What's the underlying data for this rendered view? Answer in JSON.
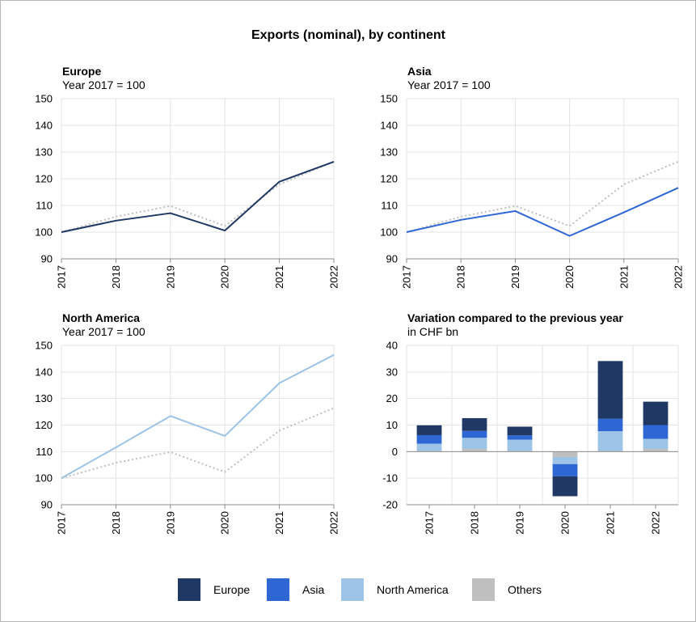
{
  "figure": {
    "title": "Exports (nominal), by continent",
    "legend": {
      "placement": "bottom",
      "items": [
        {
          "label": "Europe",
          "color": "#1f3864"
        },
        {
          "label": "Asia",
          "color": "#2e66d4"
        },
        {
          "label": "North America",
          "color": "#9dc3e6"
        },
        {
          "label": "Others",
          "color": "#bfbfbf"
        }
      ]
    }
  },
  "chart_data": [
    {
      "type": "line",
      "title": "Europe",
      "subtitle": "Year 2017 = 100",
      "x": [
        "2017",
        "2018",
        "2019",
        "2020",
        "2021",
        "2022"
      ],
      "ylim": [
        90,
        150
      ],
      "yticks": [
        90,
        100,
        110,
        120,
        130,
        140,
        150
      ],
      "grid": true,
      "series": [
        {
          "name": "Europe",
          "color": "#1f3864",
          "style": "solid",
          "values": [
            100,
            104.3,
            107.1,
            100.6,
            118.9,
            126.4
          ]
        }
      ],
      "reference": {
        "color": "#bfbfbf",
        "style": "dotted",
        "values": [
          100,
          105.8,
          109.8,
          102.3,
          117.9,
          126.4
        ]
      }
    },
    {
      "type": "line",
      "title": "Asia",
      "subtitle": "Year 2017 = 100",
      "x": [
        "2017",
        "2018",
        "2019",
        "2020",
        "2021",
        "2022"
      ],
      "ylim": [
        90,
        150
      ],
      "yticks": [
        90,
        100,
        110,
        120,
        130,
        140,
        150
      ],
      "grid": true,
      "series": [
        {
          "name": "Asia",
          "color": "#2e66d4",
          "style": "solid",
          "values": [
            100,
            104.6,
            107.9,
            98.6,
            107.4,
            116.6
          ]
        }
      ],
      "reference": {
        "color": "#bfbfbf",
        "style": "dotted",
        "values": [
          100,
          105.8,
          109.8,
          102.3,
          117.9,
          126.4
        ]
      }
    },
    {
      "type": "line",
      "title": "North America",
      "subtitle": "Year 2017 = 100",
      "x": [
        "2017",
        "2018",
        "2019",
        "2020",
        "2021",
        "2022"
      ],
      "ylim": [
        90,
        150
      ],
      "yticks": [
        90,
        100,
        110,
        120,
        130,
        140,
        150
      ],
      "grid": true,
      "series": [
        {
          "name": "North America",
          "color": "#9dc3e6",
          "style": "solid",
          "values": [
            100,
            111.6,
            123.4,
            115.9,
            135.8,
            146.4
          ]
        }
      ],
      "reference": {
        "color": "#bfbfbf",
        "style": "dotted",
        "values": [
          100,
          105.8,
          109.8,
          102.3,
          117.9,
          126.4
        ]
      }
    },
    {
      "type": "bar",
      "stacked": true,
      "title": "Variation compared to the previous year",
      "subtitle": "in CHF bn",
      "categories": [
        "2017",
        "2018",
        "2019",
        "2020",
        "2021",
        "2022"
      ],
      "ylim": [
        -20,
        40
      ],
      "yticks": [
        -20,
        -10,
        0,
        10,
        20,
        30,
        40
      ],
      "grid": true,
      "series": [
        {
          "name": "Others",
          "color": "#bfbfbf",
          "values": [
            0.3,
            1.0,
            0.3,
            -2.0,
            0.3,
            1.0
          ]
        },
        {
          "name": "North America",
          "color": "#9dc3e6",
          "values": [
            2.7,
            4.2,
            4.2,
            -2.7,
            7.4,
            3.8
          ]
        },
        {
          "name": "Asia",
          "color": "#2e66d4",
          "values": [
            3.2,
            2.6,
            1.6,
            -4.6,
            4.7,
            5.2
          ]
        },
        {
          "name": "Europe",
          "color": "#1f3864",
          "values": [
            3.7,
            4.8,
            3.3,
            -7.5,
            21.7,
            8.8
          ]
        }
      ]
    }
  ]
}
